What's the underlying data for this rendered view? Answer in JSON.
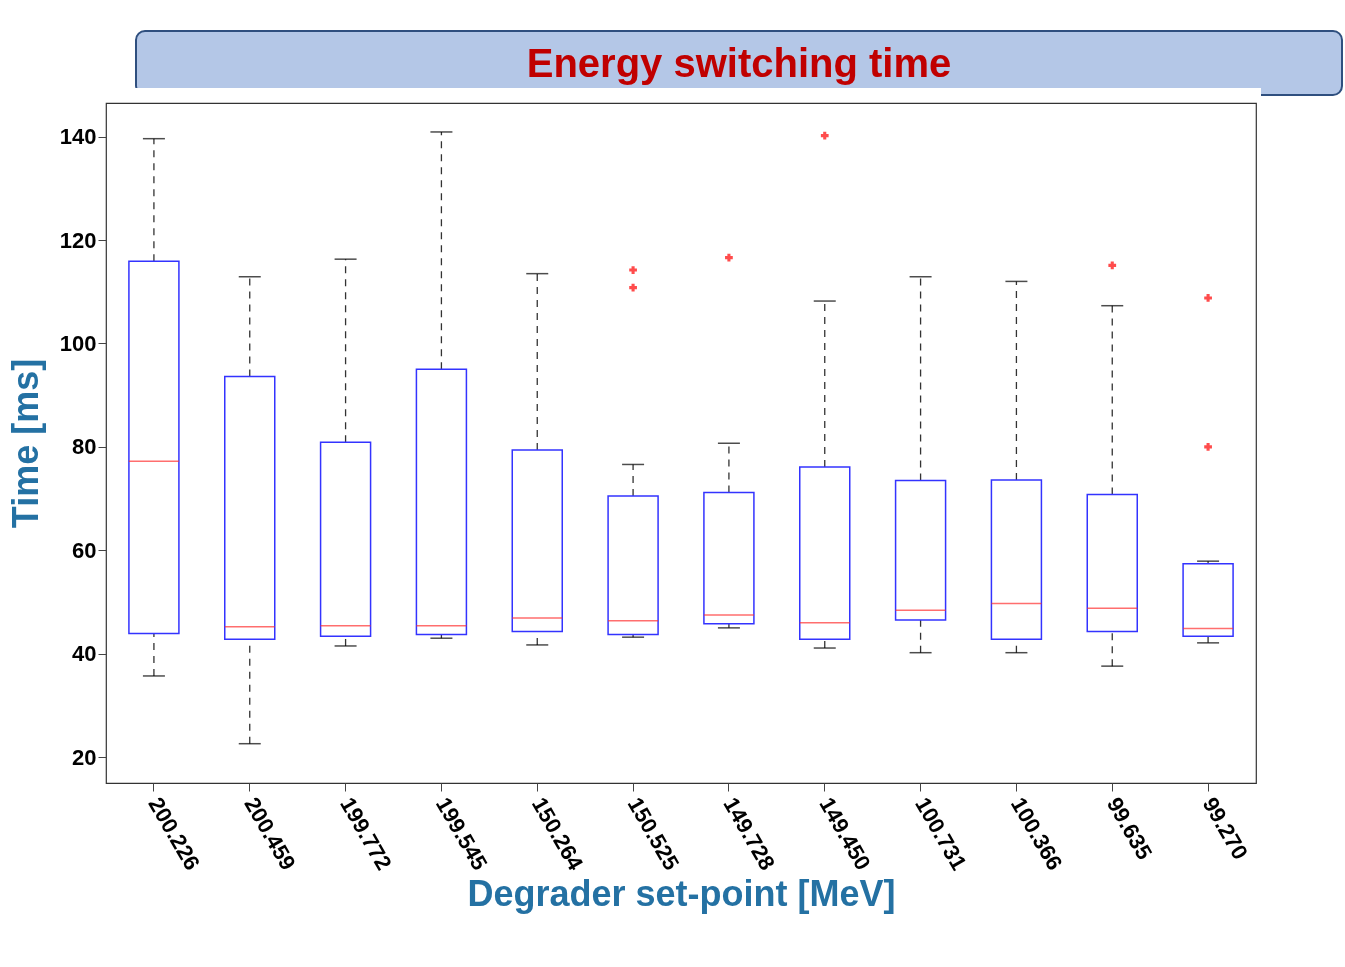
{
  "chart_data": {
    "type": "box",
    "title": "Energy switching time",
    "xlabel": "Degrader set-point [MeV]",
    "ylabel": "Time [ms]",
    "color": "#3333ff",
    "categories": [
      "200.226",
      "200.459",
      "199.772",
      "199.545",
      "150.264",
      "150.525",
      "149.728",
      "149.450",
      "100.731",
      "100.366",
      "99.635",
      "99.270"
    ],
    "boxes": [
      {
        "low": 35.7,
        "q1": 43.9,
        "median": 77.2,
        "q3": 115.9,
        "high": 139.6
      },
      {
        "low": 22.6,
        "q1": 42.8,
        "median": 45.2,
        "q3": 93.6,
        "high": 112.9
      },
      {
        "low": 41.5,
        "q1": 43.4,
        "median": 45.4,
        "q3": 80.9,
        "high": 116.3
      },
      {
        "low": 43.0,
        "q1": 43.7,
        "median": 45.4,
        "q3": 95.0,
        "high": 140.9
      },
      {
        "low": 41.7,
        "q1": 44.3,
        "median": 46.9,
        "q3": 79.4,
        "high": 113.5
      },
      {
        "low": 43.2,
        "q1": 43.7,
        "median": 46.4,
        "q3": 70.5,
        "high": 76.6,
        "outliers": [
          114.2,
          110.8
        ]
      },
      {
        "low": 45.0,
        "q1": 45.8,
        "median": 47.5,
        "q3": 71.2,
        "high": 80.7,
        "outliers": [
          116.6
        ]
      },
      {
        "low": 41.1,
        "q1": 42.8,
        "median": 46.0,
        "q3": 76.1,
        "high": 108.2,
        "outliers": [
          140.2
        ]
      },
      {
        "low": 40.2,
        "q1": 46.5,
        "median": 48.4,
        "q3": 73.5,
        "high": 112.9
      },
      {
        "low": 40.2,
        "q1": 42.8,
        "median": 49.7,
        "q3": 73.6,
        "high": 112.0
      },
      {
        "low": 37.6,
        "q1": 44.3,
        "median": 48.8,
        "q3": 70.8,
        "high": 107.3,
        "outliers": [
          115.1
        ]
      },
      {
        "low": 42.1,
        "q1": 43.4,
        "median": 44.9,
        "q3": 57.4,
        "high": 57.9,
        "outliers": [
          108.8,
          80.0
        ]
      }
    ],
    "ylim": [
      15,
      146.5
    ],
    "yticks": [
      20,
      40,
      60,
      80,
      100,
      120,
      140
    ]
  }
}
